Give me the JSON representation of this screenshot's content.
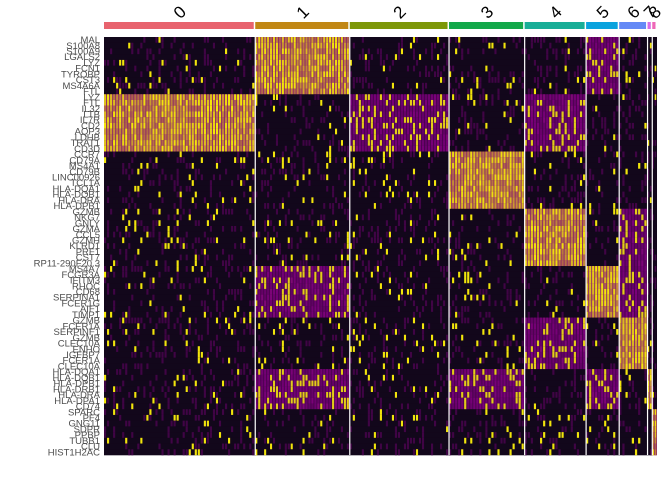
{
  "chart_data": {
    "type": "heatmap",
    "title": "",
    "xlabel": "",
    "ylabel": "",
    "clusters": [
      {
        "label": "0",
        "color": "#e8636e",
        "cells": 32
      },
      {
        "label": "1",
        "color": "#c18714",
        "cells": 20
      },
      {
        "label": "2",
        "color": "#7d9708",
        "cells": 21
      },
      {
        "label": "3",
        "color": "#13a84a",
        "cells": 16
      },
      {
        "label": "4",
        "color": "#18ae97",
        "cells": 13
      },
      {
        "label": "5",
        "color": "#0aa3de",
        "cells": 7
      },
      {
        "label": "6",
        "color": "#6489f6",
        "cells": 6
      },
      {
        "label": "7",
        "color": "#d96ce8",
        "cells": 1
      },
      {
        "label": "8",
        "color": "#ee67b7",
        "cells": 1
      }
    ],
    "genes": [
      "MAL",
      "S100A8",
      "S100A9",
      "LGALS2",
      "LYZ",
      "FCN1",
      "TYROBP",
      "CST3",
      "MS4A6A",
      "FTL",
      "LYZ",
      "FTL",
      "IL32",
      "LTB",
      "IL7R",
      "CD2",
      "AQP3",
      "LDHB",
      "TRAT1",
      "CD3D",
      "CCR7",
      "CD79A",
      "MS4A1",
      "CD79B",
      "LINC00926",
      "TCL1A",
      "HLA-DQA1",
      "HLA-DQB1",
      "HLA-DRA",
      "HLA-DPB1",
      "GZMB",
      "NKG7",
      "GNLY",
      "GZMA",
      "CCL5",
      "GZMH",
      "KLRD1",
      "PRF1",
      "CST7",
      "RP11-290F20.3",
      "MS4A7",
      "FCGR3A",
      "IFITM3",
      "RHOC",
      "CD68",
      "SERPINA1",
      "FCER1G",
      "AIF1",
      "TIMP1",
      "GZMB",
      "FCER1A",
      "SERPINF1",
      "GZMB",
      "CLEC10A",
      "ENHO",
      "IGFBP7",
      "FCER1A",
      "CLEC10A",
      "HLA-DQA1",
      "HLA-DQB1",
      "HLA-DPB1",
      "HLA-DRB1",
      "HLA-DRA",
      "HLA-DPA1",
      "CD74",
      "SPARC",
      "PF4",
      "GNG11",
      "SDPR",
      "PPBP",
      "TUBB1",
      "CLU",
      "HIST1H2AC"
    ],
    "expression_scale": {
      "low": "#12071b",
      "mid": "#7a007a",
      "high": "#ffff00"
    }
  }
}
